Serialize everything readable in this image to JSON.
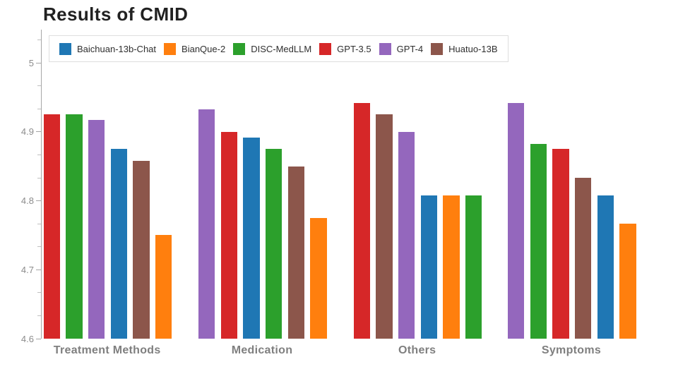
{
  "chart_data": {
    "type": "bar",
    "title": "Results of CMID",
    "categories": [
      "Treatment Methods",
      "Medication",
      "Others",
      "Symptoms"
    ],
    "series": [
      {
        "name": "Baichuan-13b-Chat",
        "color": "#1f77b4",
        "values": [
          4.875,
          4.892,
          4.808,
          4.808
        ]
      },
      {
        "name": "BianQue-2",
        "color": "#ff7f0e",
        "values": [
          4.75,
          4.775,
          4.808,
          4.767
        ]
      },
      {
        "name": "DISC-MedLLM",
        "color": "#2ca02c",
        "values": [
          4.925,
          4.875,
          4.808,
          4.883
        ]
      },
      {
        "name": "GPT-3.5",
        "color": "#d62728",
        "values": [
          4.925,
          4.9,
          4.942,
          4.875
        ]
      },
      {
        "name": "GPT-4",
        "color": "#9467bd",
        "values": [
          4.917,
          4.933,
          4.9,
          4.942
        ]
      },
      {
        "name": "Huatuo-13B",
        "color": "#8c564b",
        "values": [
          4.858,
          4.85,
          4.925,
          4.833
        ]
      }
    ],
    "bar_order_per_category": [
      [
        "GPT-3.5",
        "DISC-MedLLM",
        "GPT-4",
        "Baichuan-13b-Chat",
        "Huatuo-13B",
        "BianQue-2"
      ],
      [
        "GPT-4",
        "GPT-3.5",
        "Baichuan-13b-Chat",
        "DISC-MedLLM",
        "Huatuo-13B",
        "BianQue-2"
      ],
      [
        "GPT-3.5",
        "Huatuo-13B",
        "GPT-4",
        "Baichuan-13b-Chat",
        "BianQue-2",
        "DISC-MedLLM"
      ],
      [
        "GPT-4",
        "DISC-MedLLM",
        "GPT-3.5",
        "Huatuo-13B",
        "Baichuan-13b-Chat",
        "BianQue-2"
      ]
    ],
    "ylim": [
      4.6,
      5.05
    ],
    "yticks": [
      5,
      4.9,
      4.8,
      4.7,
      4.6
    ],
    "ytick_labels": [
      "5",
      "4.9",
      "4.8",
      "4.7",
      "4.6"
    ],
    "grid": false,
    "legend_position": "top-left-horizontal",
    "colors": {
      "axis_line": "#a6a6a6",
      "tick_label": "#8c8c8c",
      "category_label": "#7f7f7f",
      "title_text": "#212121",
      "legend_border": "#dedede",
      "background": "#ffffff"
    }
  }
}
